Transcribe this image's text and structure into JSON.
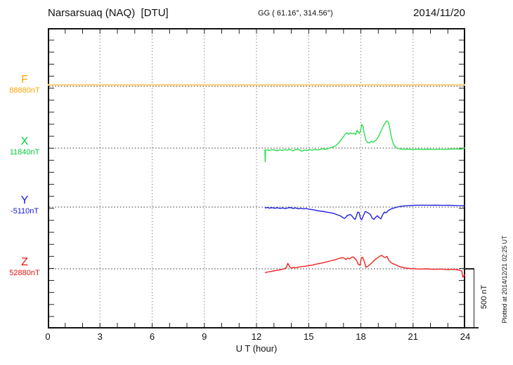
{
  "header": {
    "title": "Narsarsuaq (NAQ)  [DTU]",
    "coordinates": "GG ( 61.16°, 314.56°)",
    "date": "2014/11/20"
  },
  "annotations": {
    "scale_bar_label": "500 nT",
    "plotted_at": "Plotted at 2014/12/21 02:25 UT"
  },
  "chart_data": {
    "type": "line",
    "title": "Narsarsuaq (NAQ) [DTU] magnetogram 2014/11/20",
    "xlabel": "U T (hour)",
    "x_range": [
      0,
      24
    ],
    "x_ticks": [
      0,
      3,
      6,
      9,
      12,
      15,
      18,
      21,
      24
    ],
    "x_gridlines": [
      3,
      6,
      9,
      12,
      15,
      18,
      21
    ],
    "minor_tick_every_hours": 1,
    "grid_style": "dotted",
    "y_scale": {
      "nT_per_minor_division": 100,
      "scale_bar_nT": 500
    },
    "series": [
      {
        "name": "F",
        "label": "F",
        "baseline_value": "88880nT",
        "label_color": "#FFA500",
        "line_color": "#FFD284",
        "baseline_frac": 0.1939,
        "points": [
          [
            0,
            12
          ],
          [
            24,
            12
          ]
        ]
      },
      {
        "name": "X",
        "label": "X",
        "baseline_value": "11840nT",
        "label_color": "#00CC3A",
        "line_color": "#2EE04F",
        "baseline_frac": 0.3995,
        "points": [
          [
            12.48,
            -10
          ],
          [
            12.5,
            -115
          ],
          [
            12.52,
            -20
          ],
          [
            12.6,
            -14
          ],
          [
            12.75,
            -20
          ],
          [
            12.9,
            -12
          ],
          [
            13.05,
            -18
          ],
          [
            13.2,
            -22
          ],
          [
            13.35,
            -14
          ],
          [
            13.5,
            -20
          ],
          [
            13.6,
            -12
          ],
          [
            13.75,
            -18
          ],
          [
            13.9,
            -10
          ],
          [
            14.0,
            -16
          ],
          [
            14.1,
            -24
          ],
          [
            14.2,
            -14
          ],
          [
            14.35,
            -8
          ],
          [
            14.5,
            -18
          ],
          [
            14.6,
            -26
          ],
          [
            14.75,
            -16
          ],
          [
            14.9,
            -20
          ],
          [
            15.05,
            -12
          ],
          [
            15.2,
            -18
          ],
          [
            15.35,
            -10
          ],
          [
            15.5,
            -16
          ],
          [
            15.65,
            -12
          ],
          [
            15.8,
            -6
          ],
          [
            15.95,
            -10
          ],
          [
            16.1,
            -4
          ],
          [
            16.25,
            2
          ],
          [
            16.4,
            8
          ],
          [
            16.55,
            20
          ],
          [
            16.7,
            40
          ],
          [
            16.85,
            65
          ],
          [
            17.0,
            95
          ],
          [
            17.1,
            118
          ],
          [
            17.2,
            128
          ],
          [
            17.3,
            115
          ],
          [
            17.4,
            128
          ],
          [
            17.5,
            118
          ],
          [
            17.6,
            125
          ],
          [
            17.7,
            112
          ],
          [
            17.78,
            148
          ],
          [
            17.85,
            135
          ],
          [
            17.92,
            120
          ],
          [
            18.0,
            158
          ],
          [
            18.06,
            196
          ],
          [
            18.12,
            182
          ],
          [
            18.2,
            120
          ],
          [
            18.3,
            62
          ],
          [
            18.4,
            46
          ],
          [
            18.5,
            42
          ],
          [
            18.6,
            56
          ],
          [
            18.7,
            48
          ],
          [
            18.8,
            58
          ],
          [
            18.9,
            72
          ],
          [
            19.0,
            92
          ],
          [
            19.1,
            122
          ],
          [
            19.2,
            155
          ],
          [
            19.3,
            185
          ],
          [
            19.4,
            212
          ],
          [
            19.5,
            228
          ],
          [
            19.58,
            215
          ],
          [
            19.65,
            175
          ],
          [
            19.75,
            95
          ],
          [
            19.85,
            40
          ],
          [
            19.95,
            15
          ],
          [
            20.05,
            2
          ],
          [
            20.2,
            -6
          ],
          [
            20.4,
            -10
          ],
          [
            20.7,
            -9
          ],
          [
            21.0,
            -11
          ],
          [
            21.3,
            -8
          ],
          [
            21.6,
            -12
          ],
          [
            21.9,
            -9
          ],
          [
            22.2,
            -11
          ],
          [
            22.5,
            -8
          ],
          [
            22.8,
            -11
          ],
          [
            23.1,
            -9
          ],
          [
            23.4,
            -7
          ],
          [
            23.7,
            -9
          ],
          [
            23.85,
            -6
          ],
          [
            24.0,
            4
          ]
        ]
      },
      {
        "name": "Y",
        "label": "Y",
        "baseline_value": "-5110nT",
        "label_color": "#1515DD",
        "line_color": "#2222DD",
        "baseline_frac": 0.5958,
        "points": [
          [
            12.48,
            -8
          ],
          [
            12.6,
            -4
          ],
          [
            12.75,
            -9
          ],
          [
            12.9,
            -5
          ],
          [
            13.05,
            -10
          ],
          [
            13.2,
            -6
          ],
          [
            13.35,
            -11
          ],
          [
            13.5,
            -7
          ],
          [
            13.65,
            -13
          ],
          [
            13.8,
            -7
          ],
          [
            13.95,
            -4
          ],
          [
            14.1,
            -11
          ],
          [
            14.25,
            -7
          ],
          [
            14.4,
            -14
          ],
          [
            14.55,
            -10
          ],
          [
            14.7,
            -15
          ],
          [
            14.85,
            -12
          ],
          [
            15.0,
            -17
          ],
          [
            15.15,
            -20
          ],
          [
            15.3,
            -24
          ],
          [
            15.45,
            -28
          ],
          [
            15.6,
            -32
          ],
          [
            15.75,
            -35
          ],
          [
            15.9,
            -38
          ],
          [
            16.05,
            -42
          ],
          [
            16.2,
            -46
          ],
          [
            16.35,
            -50
          ],
          [
            16.5,
            -56
          ],
          [
            16.65,
            -64
          ],
          [
            16.8,
            -72
          ],
          [
            16.95,
            -85
          ],
          [
            17.05,
            -95
          ],
          [
            17.12,
            -88
          ],
          [
            17.2,
            -72
          ],
          [
            17.3,
            -66
          ],
          [
            17.4,
            -62
          ],
          [
            17.5,
            -76
          ],
          [
            17.6,
            -96
          ],
          [
            17.68,
            -102
          ],
          [
            17.75,
            -72
          ],
          [
            17.82,
            -42
          ],
          [
            17.9,
            -46
          ],
          [
            17.98,
            -95
          ],
          [
            18.05,
            -106
          ],
          [
            18.15,
            -70
          ],
          [
            18.25,
            -38
          ],
          [
            18.35,
            -42
          ],
          [
            18.45,
            -52
          ],
          [
            18.55,
            -62
          ],
          [
            18.65,
            -92
          ],
          [
            18.75,
            -102
          ],
          [
            18.85,
            -85
          ],
          [
            18.95,
            -72
          ],
          [
            19.05,
            -88
          ],
          [
            19.15,
            -98
          ],
          [
            19.25,
            -65
          ],
          [
            19.35,
            -42
          ],
          [
            19.45,
            -48
          ],
          [
            19.55,
            -32
          ],
          [
            19.7,
            -18
          ],
          [
            19.85,
            -10
          ],
          [
            20.0,
            -4
          ],
          [
            20.2,
            4
          ],
          [
            20.5,
            10
          ],
          [
            20.8,
            13
          ],
          [
            21.1,
            15
          ],
          [
            21.5,
            16
          ],
          [
            21.9,
            15
          ],
          [
            22.3,
            16
          ],
          [
            22.7,
            14
          ],
          [
            23.1,
            15
          ],
          [
            23.5,
            13
          ],
          [
            23.8,
            12
          ],
          [
            24.0,
            11
          ]
        ]
      },
      {
        "name": "Z",
        "label": "Z",
        "baseline_value": "52880nT",
        "label_color": "#EE1111",
        "line_color": "#EE2222",
        "baseline_frac": 0.8014,
        "points": [
          [
            12.48,
            -32
          ],
          [
            12.6,
            -28
          ],
          [
            12.75,
            -24
          ],
          [
            12.9,
            -20
          ],
          [
            13.05,
            -16
          ],
          [
            13.2,
            -12
          ],
          [
            13.35,
            -8
          ],
          [
            13.5,
            -4
          ],
          [
            13.62,
            2
          ],
          [
            13.72,
            12
          ],
          [
            13.8,
            46
          ],
          [
            13.88,
            24
          ],
          [
            13.95,
            10
          ],
          [
            14.05,
            6
          ],
          [
            14.15,
            14
          ],
          [
            14.25,
            8
          ],
          [
            14.4,
            14
          ],
          [
            14.55,
            17
          ],
          [
            14.7,
            20
          ],
          [
            14.85,
            23
          ],
          [
            15.0,
            27
          ],
          [
            15.15,
            30
          ],
          [
            15.3,
            34
          ],
          [
            15.45,
            40
          ],
          [
            15.6,
            44
          ],
          [
            15.75,
            48
          ],
          [
            15.9,
            53
          ],
          [
            16.05,
            58
          ],
          [
            16.2,
            64
          ],
          [
            16.35,
            70
          ],
          [
            16.5,
            75
          ],
          [
            16.65,
            82
          ],
          [
            16.8,
            88
          ],
          [
            16.95,
            94
          ],
          [
            17.05,
            88
          ],
          [
            17.15,
            78
          ],
          [
            17.25,
            90
          ],
          [
            17.35,
            82
          ],
          [
            17.45,
            94
          ],
          [
            17.55,
            100
          ],
          [
            17.65,
            86
          ],
          [
            17.75,
            72
          ],
          [
            17.85,
            38
          ],
          [
            17.95,
            30
          ],
          [
            18.03,
            92
          ],
          [
            18.1,
            96
          ],
          [
            18.2,
            62
          ],
          [
            18.3,
            12
          ],
          [
            18.4,
            22
          ],
          [
            18.5,
            32
          ],
          [
            18.6,
            46
          ],
          [
            18.7,
            60
          ],
          [
            18.8,
            74
          ],
          [
            18.9,
            86
          ],
          [
            19.0,
            96
          ],
          [
            19.1,
            106
          ],
          [
            19.2,
            112
          ],
          [
            19.3,
            100
          ],
          [
            19.4,
            94
          ],
          [
            19.5,
            104
          ],
          [
            19.6,
            72
          ],
          [
            19.7,
            56
          ],
          [
            19.8,
            46
          ],
          [
            19.9,
            40
          ],
          [
            20.0,
            34
          ],
          [
            20.2,
            20
          ],
          [
            20.4,
            12
          ],
          [
            20.6,
            6
          ],
          [
            20.8,
            3
          ],
          [
            21.0,
            1
          ],
          [
            21.4,
            -2
          ],
          [
            21.8,
            0
          ],
          [
            22.2,
            -4
          ],
          [
            22.6,
            -2
          ],
          [
            23.0,
            -6
          ],
          [
            23.3,
            -4
          ],
          [
            23.6,
            -8
          ],
          [
            23.8,
            -18
          ],
          [
            23.86,
            -68
          ],
          [
            23.92,
            -58
          ],
          [
            24.0,
            -48
          ]
        ]
      }
    ]
  }
}
